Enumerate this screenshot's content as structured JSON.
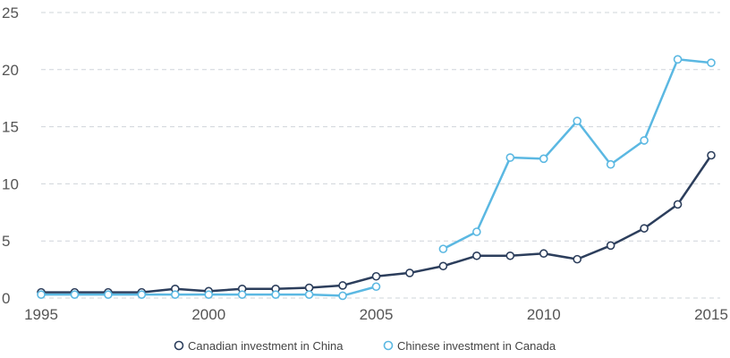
{
  "chart_data": {
    "type": "line",
    "title": "",
    "xlabel": "",
    "ylabel": "",
    "xlim": [
      1995,
      2015
    ],
    "ylim": [
      0,
      25
    ],
    "x_ticks": [
      "1995",
      "2000",
      "2005",
      "2010",
      "2015"
    ],
    "y_ticks": [
      "0",
      "5",
      "10",
      "15",
      "20",
      "25"
    ],
    "grid": "horizontal dashed",
    "legend_position": "bottom-center",
    "series": [
      {
        "name": "Canadian investment in China",
        "color": "#2c3e5c",
        "points": [
          [
            1995,
            0.5
          ],
          [
            1996,
            0.5
          ],
          [
            1997,
            0.5
          ],
          [
            1998,
            0.5
          ],
          [
            1999,
            0.8
          ],
          [
            2000,
            0.6
          ],
          [
            2001,
            0.8
          ],
          [
            2002,
            0.8
          ],
          [
            2003,
            0.9
          ],
          [
            2004,
            1.1
          ],
          [
            2005,
            1.9
          ],
          [
            2006,
            2.2
          ],
          [
            2007,
            2.8
          ],
          [
            2008,
            3.7
          ],
          [
            2009,
            3.7
          ],
          [
            2010,
            3.9
          ],
          [
            2011,
            3.4
          ],
          [
            2012,
            4.6
          ],
          [
            2013,
            6.1
          ],
          [
            2014,
            8.2
          ],
          [
            2015,
            12.5
          ]
        ]
      },
      {
        "name": "Chinese investment in Canada",
        "color": "#5bb8e2",
        "points": [
          [
            1995,
            0.3
          ],
          [
            1996,
            0.3
          ],
          [
            1997,
            0.3
          ],
          [
            1998,
            0.3
          ],
          [
            1999,
            0.3
          ],
          [
            2000,
            0.3
          ],
          [
            2001,
            0.3
          ],
          [
            2002,
            0.3
          ],
          [
            2003,
            0.3
          ],
          [
            2004,
            0.2
          ],
          [
            2005,
            1.0
          ],
          null,
          [
            2007,
            4.3
          ],
          [
            2008,
            5.8
          ],
          [
            2009,
            12.3
          ],
          [
            2010,
            12.2
          ],
          [
            2011,
            15.5
          ],
          [
            2012,
            11.7
          ],
          [
            2013,
            13.8
          ],
          [
            2014,
            20.9
          ],
          [
            2015,
            20.6
          ]
        ]
      }
    ]
  }
}
